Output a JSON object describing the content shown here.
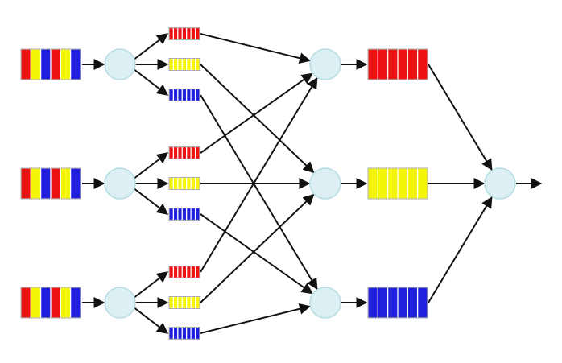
{
  "diagram": {
    "type": "multistage queueing / switching network",
    "colors": {
      "red": "#ee1111",
      "yellow": "#f5f50a",
      "blue": "#1f1fdd",
      "node": "#dcf0f4",
      "edge": "#111111"
    },
    "input_queues": [
      {
        "id": "in-1",
        "slots": [
          "red",
          "yellow",
          "blue",
          "red",
          "yellow",
          "blue"
        ]
      },
      {
        "id": "in-2",
        "slots": [
          "red",
          "yellow",
          "blue",
          "red",
          "yellow",
          "blue"
        ]
      },
      {
        "id": "in-3",
        "slots": [
          "red",
          "yellow",
          "blue",
          "red",
          "yellow",
          "blue"
        ]
      }
    ],
    "input_nodes": [
      "in-node-1",
      "in-node-2",
      "in-node-3"
    ],
    "mid_queues": [
      {
        "group": 1,
        "queues": [
          {
            "color": "red",
            "slots": 7
          },
          {
            "color": "yellow",
            "slots": 7
          },
          {
            "color": "blue",
            "slots": 7
          }
        ]
      },
      {
        "group": 2,
        "queues": [
          {
            "color": "red",
            "slots": 7
          },
          {
            "color": "yellow",
            "slots": 7
          },
          {
            "color": "blue",
            "slots": 7
          }
        ]
      },
      {
        "group": 3,
        "queues": [
          {
            "color": "red",
            "slots": 7
          },
          {
            "color": "yellow",
            "slots": 7
          },
          {
            "color": "blue",
            "slots": 7
          }
        ]
      }
    ],
    "merge_nodes": [
      "merge-red",
      "merge-yellow",
      "merge-blue"
    ],
    "output_queues": [
      {
        "color": "red",
        "slots": 6
      },
      {
        "color": "yellow",
        "slots": 6
      },
      {
        "color": "blue",
        "slots": 6
      }
    ],
    "final_node": "output-node"
  }
}
